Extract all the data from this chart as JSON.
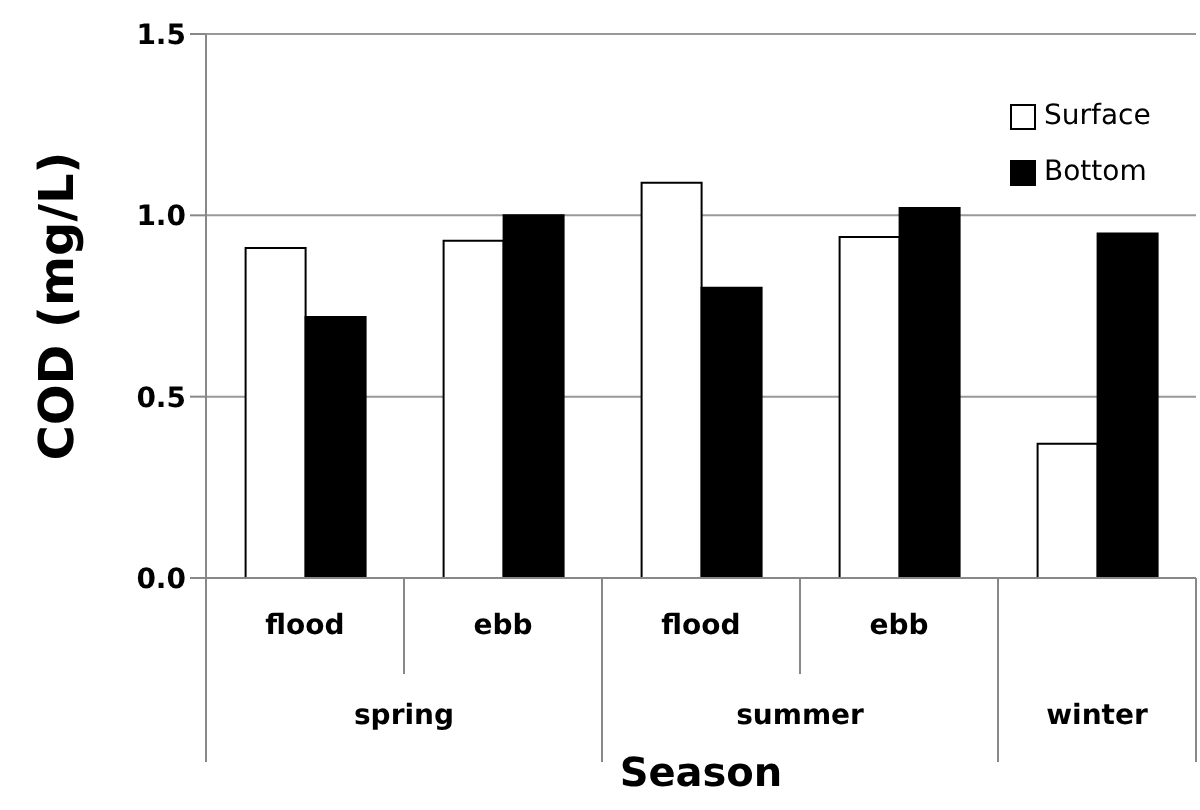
{
  "chart_data": {
    "type": "bar",
    "xlabel": "Season",
    "ylabel": "COD (mg/L)",
    "categories": [
      "flood",
      "ebb",
      "flood",
      "ebb",
      null
    ],
    "series": [
      {
        "name": "Surface",
        "color": "#ffffff",
        "values": [
          0.91,
          0.93,
          1.09,
          0.94,
          0.37
        ]
      },
      {
        "name": "Bottom",
        "color": "#000000",
        "values": [
          0.72,
          1.0,
          0.8,
          1.02,
          0.95
        ]
      }
    ],
    "ylim": [
      0,
      1.5
    ],
    "yticks": [
      {
        "value": 0,
        "label": "0.0"
      },
      {
        "value": 0.5,
        "label": "0.5"
      },
      {
        "value": 1,
        "label": "1.0"
      },
      {
        "value": 1.5,
        "label": "1.5"
      }
    ],
    "grid": "y",
    "legend": "top right",
    "annotations": [
      "spring",
      "summer",
      "winter"
    ]
  }
}
